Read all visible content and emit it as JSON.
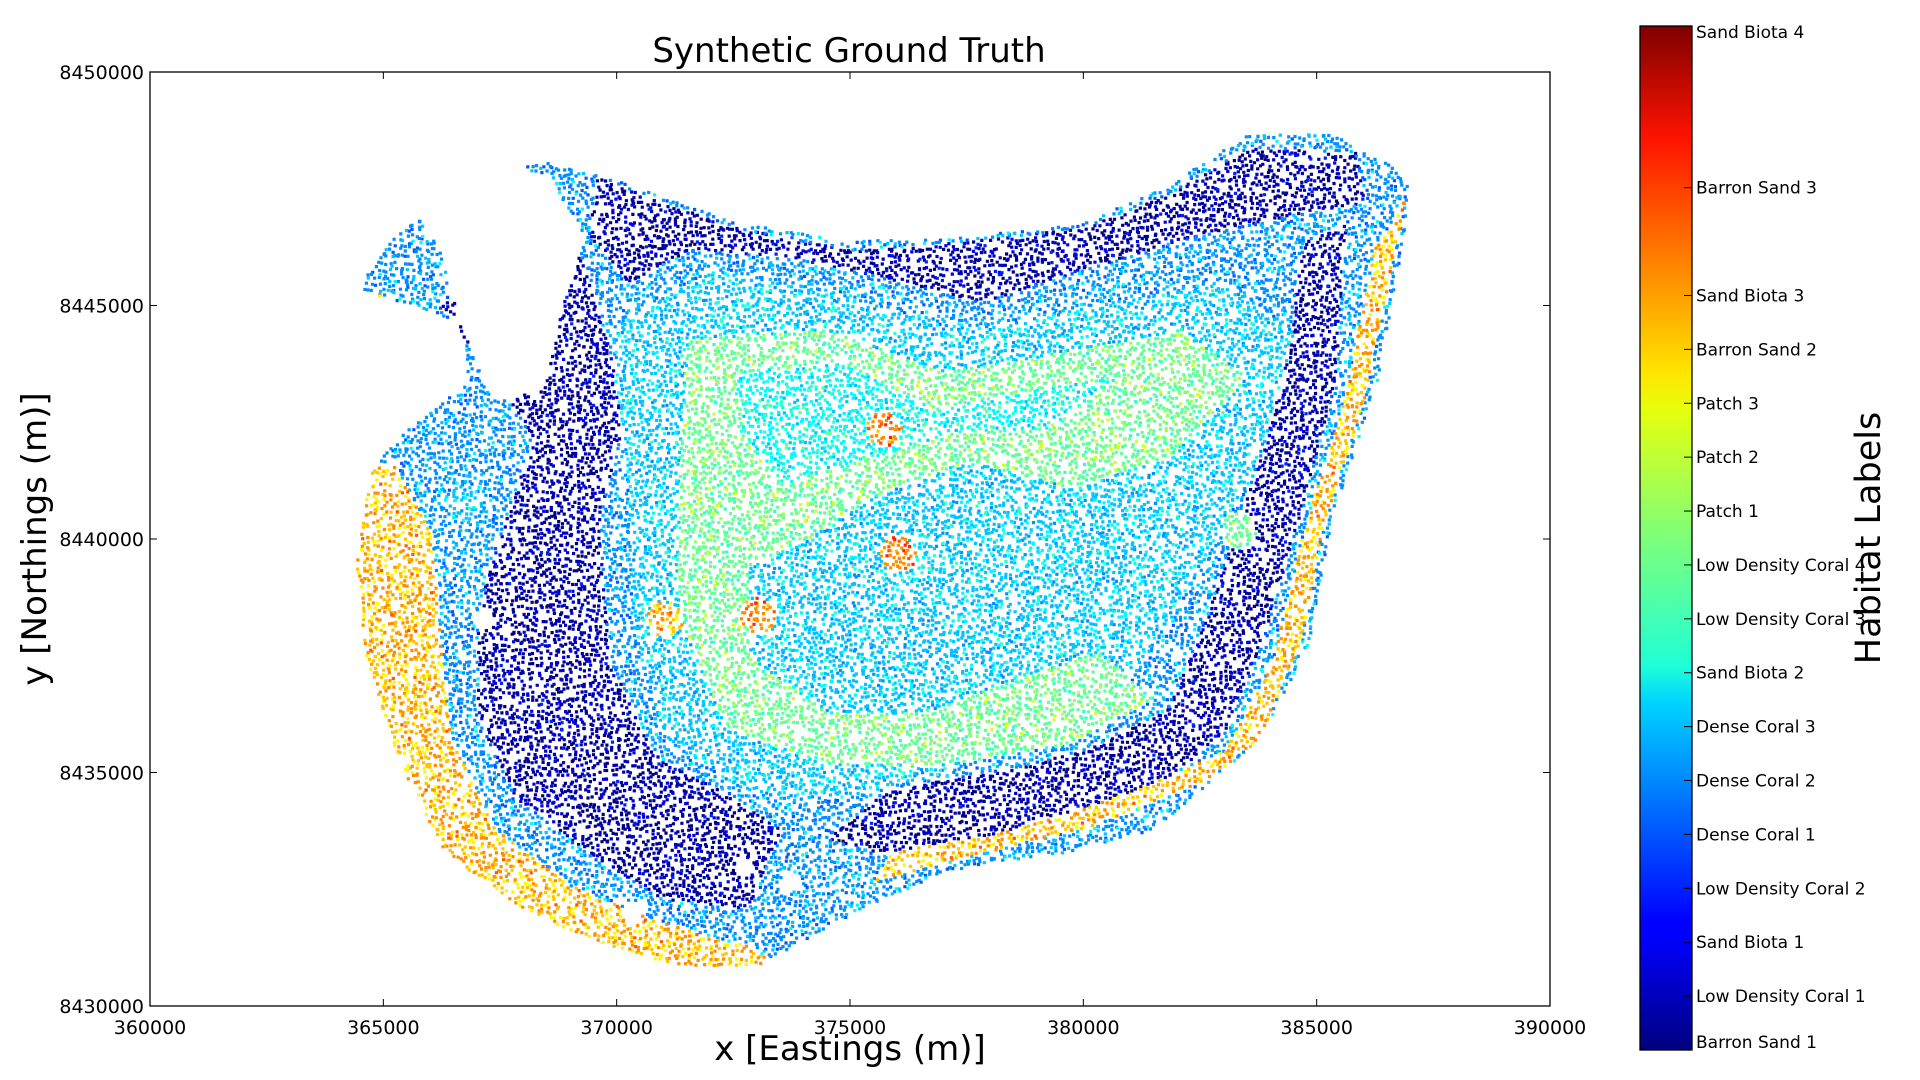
{
  "chart_data": {
    "type": "scatter",
    "title": "Synthetic Ground Truth",
    "xlabel": "x [Eastings (m)]",
    "ylabel": "y [Northings (m)]",
    "xlim": [
      360000,
      390000
    ],
    "ylim": [
      8430000,
      8450000
    ],
    "xticks": [
      "360000",
      "365000",
      "370000",
      "375000",
      "380000",
      "385000",
      "390000"
    ],
    "yticks": [
      "8430000",
      "8435000",
      "8440000",
      "8445000",
      "8450000"
    ],
    "grid": false,
    "colorbar": {
      "label": "Habitat Labels",
      "colormap": "jet",
      "ticks": [
        {
          "value": 0,
          "label": "Barron Sand 1"
        },
        {
          "value": 1,
          "label": "Low Density Coral 1"
        },
        {
          "value": 2,
          "label": "Sand Biota 1"
        },
        {
          "value": 3,
          "label": "Low Density Coral 2"
        },
        {
          "value": 4,
          "label": "Dense Coral 1"
        },
        {
          "value": 5,
          "label": "Dense Coral 2"
        },
        {
          "value": 6,
          "label": "Dense Coral 3"
        },
        {
          "value": 7,
          "label": "Sand Biota 2"
        },
        {
          "value": 8,
          "label": "Low Density Coral 3"
        },
        {
          "value": 9,
          "label": "Low Density Coral 4"
        },
        {
          "value": 10,
          "label": "Patch 1"
        },
        {
          "value": 11,
          "label": "Patch 2"
        },
        {
          "value": 12,
          "label": "Patch 3"
        },
        {
          "value": 13,
          "label": "Barron Sand 2"
        },
        {
          "value": 14,
          "label": "Sand Biota 3"
        },
        {
          "value": 16,
          "label": "Barron Sand 3"
        },
        {
          "value": 19,
          "label": "Sand Biota 4"
        }
      ],
      "range": [
        0,
        19
      ]
    },
    "region_outline": [
      [
        364400,
        8445400
      ],
      [
        365300,
        8446600
      ],
      [
        367200,
        8447800
      ],
      [
        368400,
        8448100
      ],
      [
        370000,
        8447700
      ],
      [
        372500,
        8446800
      ],
      [
        375000,
        8446400
      ],
      [
        377500,
        8446500
      ],
      [
        380000,
        8446800
      ],
      [
        381800,
        8447600
      ],
      [
        383500,
        8448700
      ],
      [
        385300,
        8448700
      ],
      [
        387000,
        8447800
      ],
      [
        386800,
        8446300
      ],
      [
        386300,
        8443500
      ],
      [
        385300,
        8440500
      ],
      [
        384800,
        8437800
      ],
      [
        383800,
        8435800
      ],
      [
        381500,
        8433800
      ],
      [
        379500,
        8433300
      ],
      [
        377000,
        8432900
      ],
      [
        375000,
        8432000
      ],
      [
        373000,
        8430900
      ],
      [
        371300,
        8430900
      ],
      [
        369500,
        8431400
      ],
      [
        368000,
        8432100
      ],
      [
        366300,
        8433300
      ],
      [
        365300,
        8435300
      ],
      [
        364600,
        8437500
      ],
      [
        364400,
        8439500
      ],
      [
        364700,
        8441500
      ],
      [
        365400,
        8442300
      ],
      [
        366800,
        8443400
      ],
      [
        366600,
        8444700
      ],
      [
        365000,
        8445200
      ]
    ],
    "gap_outline": [
      [
        365500,
        8447200
      ],
      [
        367000,
        8448000
      ],
      [
        368500,
        8447800
      ],
      [
        369300,
        8446500
      ],
      [
        368800,
        8445000
      ],
      [
        368400,
        8443200
      ],
      [
        367300,
        8443000
      ],
      [
        366600,
        8444700
      ],
      [
        366200,
        8446200
      ]
    ],
    "zones": [
      {
        "label_value": 1,
        "core": [
          [
            366200,
            8445000
          ],
          [
            367300,
            8443500
          ],
          [
            368200,
            8442200
          ],
          [
            367600,
            8440500
          ],
          [
            367000,
            8438500
          ],
          [
            367000,
            8436200
          ],
          [
            367800,
            8434500
          ],
          [
            369500,
            8433200
          ],
          [
            371000,
            8432300
          ],
          [
            372800,
            8432100
          ],
          [
            373500,
            8433800
          ],
          [
            372500,
            8434500
          ],
          [
            370800,
            8435400
          ],
          [
            369800,
            8437500
          ],
          [
            369600,
            8440500
          ],
          [
            370200,
            8442800
          ],
          [
            369600,
            8444800
          ],
          [
            369000,
            8446800
          ],
          [
            368400,
            8447600
          ]
        ]
      },
      {
        "label_value": 1,
        "core": [
          [
            376500,
            8441000
          ],
          [
            378000,
            8442000
          ],
          [
            379500,
            8441600
          ],
          [
            381000,
            8442600
          ],
          [
            382600,
            8443200
          ],
          [
            383500,
            8442000
          ],
          [
            382300,
            8440600
          ],
          [
            381300,
            8439300
          ],
          [
            379800,
            8438800
          ],
          [
            378800,
            8438100
          ],
          [
            377500,
            8437800
          ],
          [
            376600,
            8438700
          ],
          [
            375300,
            8439500
          ],
          [
            374500,
            8440400
          ],
          [
            375400,
            8440700
          ]
        ]
      },
      {
        "label_value": 1,
        "core": [
          [
            369500,
            8447800
          ],
          [
            372500,
            8446700
          ],
          [
            375000,
            8446200
          ],
          [
            377500,
            8446400
          ],
          [
            380000,
            8446700
          ],
          [
            381800,
            8447400
          ],
          [
            383500,
            8448400
          ],
          [
            385800,
            8448300
          ],
          [
            386000,
            8447200
          ],
          [
            384600,
            8447000
          ],
          [
            382300,
            8446500
          ],
          [
            380000,
            8445800
          ],
          [
            377800,
            8445100
          ],
          [
            375800,
            8445600
          ],
          [
            373500,
            8446100
          ],
          [
            371500,
            8446200
          ],
          [
            370200,
            8445500
          ],
          [
            369400,
            8446500
          ]
        ]
      },
      {
        "label_value": 1,
        "core": [
          [
            385600,
            8446800
          ],
          [
            385400,
            8443500
          ],
          [
            384600,
            8440500
          ],
          [
            383800,
            8437800
          ],
          [
            383000,
            8435900
          ],
          [
            381700,
            8434800
          ],
          [
            380000,
            8434200
          ],
          [
            378000,
            8433700
          ],
          [
            376000,
            8433200
          ],
          [
            374500,
            8433600
          ],
          [
            375800,
            8434700
          ],
          [
            378000,
            8435000
          ],
          [
            380000,
            8435500
          ],
          [
            381800,
            8436400
          ],
          [
            382600,
            8438300
          ],
          [
            383500,
            8441000
          ],
          [
            384300,
            8443800
          ],
          [
            384700,
            8446400
          ]
        ]
      },
      {
        "label_value": 6,
        "core": [
          [
            369800,
            8444500
          ],
          [
            372000,
            8445800
          ],
          [
            375000,
            8445200
          ],
          [
            377600,
            8444400
          ],
          [
            380000,
            8445000
          ],
          [
            383000,
            8445500
          ],
          [
            384500,
            8444500
          ],
          [
            383800,
            8441800
          ],
          [
            382500,
            8439500
          ],
          [
            381200,
            8437300
          ],
          [
            379200,
            8436200
          ],
          [
            377000,
            8435000
          ],
          [
            374800,
            8434500
          ],
          [
            372800,
            8434600
          ],
          [
            371000,
            8435800
          ],
          [
            370300,
            8438300
          ],
          [
            370200,
            8441500
          ]
        ]
      },
      {
        "label_value": 9,
        "core": [
          [
            371500,
            8444300
          ],
          [
            374500,
            8444500
          ],
          [
            377000,
            8443600
          ],
          [
            379500,
            8444000
          ],
          [
            382000,
            8444500
          ],
          [
            383500,
            8443500
          ],
          [
            381800,
            8441800
          ],
          [
            379800,
            8441100
          ],
          [
            377500,
            8441700
          ],
          [
            375600,
            8441000
          ],
          [
            374000,
            8440000
          ],
          [
            372800,
            8439400
          ],
          [
            372800,
            8437500
          ],
          [
            374500,
            8436300
          ],
          [
            376500,
            8436300
          ],
          [
            378500,
            8437000
          ],
          [
            380300,
            8437600
          ],
          [
            381500,
            8436600
          ],
          [
            379500,
            8435600
          ],
          [
            377000,
            8435200
          ],
          [
            374500,
            8435200
          ],
          [
            372300,
            8436000
          ],
          [
            371300,
            8438400
          ],
          [
            371300,
            8441500
          ]
        ]
      },
      {
        "label_value": 7,
        "core": [
          [
            372500,
            8443600
          ],
          [
            374800,
            8443800
          ],
          [
            376800,
            8442800
          ],
          [
            378800,
            8443200
          ],
          [
            380800,
            8443500
          ],
          [
            379200,
            8442400
          ],
          [
            377200,
            8442300
          ],
          [
            375200,
            8441700
          ],
          [
            373500,
            8441200
          ],
          [
            372700,
            8442200
          ]
        ]
      },
      {
        "label_value": 13,
        "core": [
          [
            364400,
            8441500
          ],
          [
            365200,
            8441600
          ],
          [
            366000,
            8440200
          ],
          [
            366200,
            8437800
          ],
          [
            366400,
            8435800
          ],
          [
            367400,
            8433800
          ],
          [
            369000,
            8432600
          ],
          [
            371000,
            8431800
          ],
          [
            372800,
            8431300
          ],
          [
            373400,
            8430900
          ],
          [
            371300,
            8430900
          ],
          [
            369500,
            8431400
          ],
          [
            368000,
            8432100
          ],
          [
            366300,
            8433300
          ],
          [
            365300,
            8435300
          ],
          [
            364600,
            8437500
          ],
          [
            364400,
            8439500
          ]
        ]
      },
      {
        "label_value": 13,
        "core": [
          [
            386900,
            8447400
          ],
          [
            386600,
            8446000
          ],
          [
            386000,
            8443000
          ],
          [
            385100,
            8440300
          ],
          [
            384600,
            8437700
          ],
          [
            383700,
            8435700
          ],
          [
            382500,
            8434800
          ],
          [
            380200,
            8433900
          ],
          [
            377800,
            8433300
          ],
          [
            375500,
            8432700
          ],
          [
            375800,
            8433300
          ],
          [
            378500,
            8433800
          ],
          [
            381000,
            8434600
          ],
          [
            383000,
            8435500
          ],
          [
            384000,
            8437300
          ],
          [
            384700,
            8440200
          ],
          [
            385600,
            8443200
          ],
          [
            386200,
            8446200
          ]
        ]
      },
      {
        "label_value": 13,
        "core": [
          [
            364800,
            8445300
          ],
          [
            365600,
            8444900
          ],
          [
            366500,
            8444500
          ],
          [
            366700,
            8443500
          ],
          [
            365800,
            8443000
          ],
          [
            364700,
            8444000
          ]
        ]
      }
    ],
    "patches": [
      {
        "label_value": 14,
        "x": 373000,
        "y": 8438400
      },
      {
        "label_value": 14,
        "x": 375700,
        "y": 8442400
      },
      {
        "label_value": 13,
        "x": 371000,
        "y": 8438300
      },
      {
        "label_value": 14,
        "x": 376000,
        "y": 8439700
      },
      {
        "label_value": 9,
        "x": 383300,
        "y": 8440200
      },
      {
        "label_value": 6,
        "x": 366700,
        "y": 8440800
      }
    ],
    "holes": [
      {
        "x": 367100,
        "y": 8438300
      },
      {
        "x": 372700,
        "y": 8433000
      },
      {
        "x": 373700,
        "y": 8432700
      },
      {
        "x": 370300,
        "y": 8432000
      }
    ]
  }
}
